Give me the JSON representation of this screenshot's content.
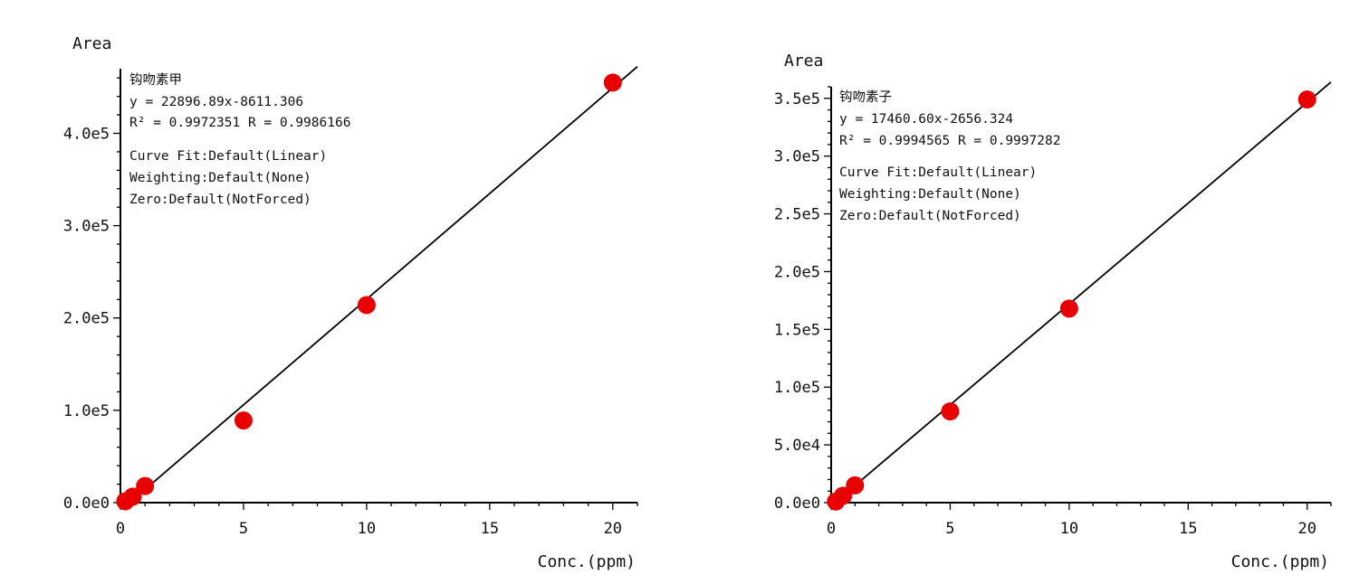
{
  "chart_data": [
    {
      "type": "scatter",
      "title": "",
      "xlabel": "Conc.(ppm)",
      "ylabel": "Area",
      "xlim": [
        0,
        21
      ],
      "ylim": [
        0,
        470000
      ],
      "x_ticks": [
        0,
        5,
        10,
        15,
        20
      ],
      "x_tick_labels": [
        "0",
        "5",
        "10",
        "15",
        "20"
      ],
      "y_ticks": [
        0,
        100000,
        200000,
        300000,
        400000
      ],
      "y_tick_labels": [
        "0.0e0",
        "1.0e5",
        "2.0e5",
        "3.0e5",
        "4.0e5"
      ],
      "grid": false,
      "series": [
        {
          "x": [
            0.2,
            0.5,
            1.0,
            5.0,
            10.0,
            20.0
          ],
          "y": [
            1500,
            6500,
            18000,
            89000,
            214000,
            455000
          ]
        }
      ],
      "fit": {
        "slope": 22896.89,
        "intercept": -8611.306,
        "x_range": [
          0.38,
          21
        ]
      },
      "annotations": {
        "compound": "钩吻素甲",
        "equation": "y = 22896.89x-8611.306",
        "r_stats": "R² = 0.9972351   R = 0.9986166",
        "curve_fit": "Curve Fit:Default(Linear)",
        "weighting": "Weighting:Default(None)",
        "zero": "Zero:Default(NotForced)"
      },
      "colors": {
        "marker": "#e80000",
        "line": "#000000"
      }
    },
    {
      "type": "scatter",
      "title": "",
      "xlabel": "Conc.(ppm)",
      "ylabel": "Area",
      "xlim": [
        0,
        21
      ],
      "ylim": [
        0,
        360000
      ],
      "x_ticks": [
        0,
        5,
        10,
        15,
        20
      ],
      "x_tick_labels": [
        "0",
        "5",
        "10",
        "15",
        "20"
      ],
      "y_ticks": [
        0,
        50000,
        100000,
        150000,
        200000,
        250000,
        300000,
        350000
      ],
      "y_tick_labels": [
        "0.0e0",
        "5.0e4",
        "1.0e5",
        "1.5e5",
        "2.0e5",
        "2.5e5",
        "3.0e5",
        "3.5e5"
      ],
      "grid": false,
      "series": [
        {
          "x": [
            0.2,
            0.5,
            1.0,
            5.0,
            10.0,
            20.0
          ],
          "y": [
            1000,
            6000,
            15000,
            79000,
            168000,
            349000
          ]
        }
      ],
      "fit": {
        "slope": 17460.6,
        "intercept": -2656.324,
        "x_range": [
          0.15,
          21
        ]
      },
      "annotations": {
        "compound": "钩吻素子",
        "equation": "y = 17460.60x-2656.324",
        "r_stats": "R² = 0.9994565   R = 0.9997282",
        "curve_fit": "Curve Fit:Default(Linear)",
        "weighting": "Weighting:Default(None)",
        "zero": "Zero:Default(NotForced)"
      },
      "colors": {
        "marker": "#e80000",
        "line": "#000000"
      }
    }
  ]
}
